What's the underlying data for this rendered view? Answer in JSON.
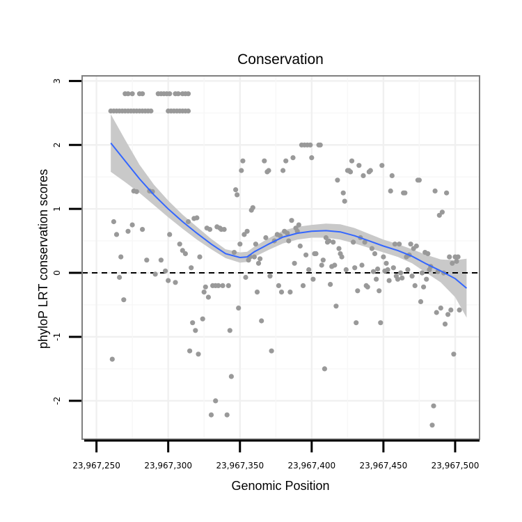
{
  "chart_data": {
    "type": "scatter",
    "title": "Conservation",
    "xlabel": "Genomic Position",
    "ylabel": "phyloP LRT conservation scores",
    "xlim": [
      23967240,
      23967517
    ],
    "ylim": [
      -2.6,
      3.08
    ],
    "x_ticks": [
      23967250,
      23967300,
      23967350,
      23967400,
      23967450,
      23967500
    ],
    "x_tick_labels": [
      "23,967,250",
      "23,967,300",
      "23,967,350",
      "23,967,400",
      "23,967,450",
      "23,967,500"
    ],
    "y_ticks": [
      -2,
      -1,
      0,
      1,
      2,
      3
    ],
    "y_tick_labels": [
      "-2",
      "-1",
      "0",
      "1",
      "2",
      "3"
    ],
    "reference_line": {
      "y": 0,
      "style": "dashed",
      "color": "#000000"
    },
    "grid": true,
    "colors": {
      "points": "#999999",
      "smooth": "#3366ff",
      "ribbon": "#c9c9c9",
      "panel_border": "#7f7f7f",
      "grid": "#f0f0f0"
    },
    "points": [
      [
        23967260,
        2.53
      ],
      [
        23967262,
        2.53
      ],
      [
        23967264,
        2.53
      ],
      [
        23967266,
        2.53
      ],
      [
        23967268,
        2.53
      ],
      [
        23967270,
        2.53
      ],
      [
        23967272,
        2.53
      ],
      [
        23967274,
        2.53
      ],
      [
        23967276,
        2.53
      ],
      [
        23967278,
        2.53
      ],
      [
        23967280,
        2.53
      ],
      [
        23967282,
        2.53
      ],
      [
        23967284,
        2.53
      ],
      [
        23967286,
        2.53
      ],
      [
        23967288,
        2.53
      ],
      [
        23967300,
        2.53
      ],
      [
        23967302,
        2.53
      ],
      [
        23967304,
        2.53
      ],
      [
        23967306,
        2.53
      ],
      [
        23967308,
        2.53
      ],
      [
        23967310,
        2.53
      ],
      [
        23967312,
        2.53
      ],
      [
        23967314,
        2.53
      ],
      [
        23967270,
        2.8
      ],
      [
        23967272,
        2.8
      ],
      [
        23967275,
        2.8
      ],
      [
        23967280,
        2.8
      ],
      [
        23967282,
        2.8
      ],
      [
        23967293,
        2.8
      ],
      [
        23967295,
        2.8
      ],
      [
        23967297,
        2.8
      ],
      [
        23967299,
        2.8
      ],
      [
        23967301,
        2.8
      ],
      [
        23967305,
        2.8
      ],
      [
        23967307,
        2.8
      ],
      [
        23967310,
        2.8
      ],
      [
        23967312,
        2.8
      ],
      [
        23967314,
        2.8
      ],
      [
        23967261,
        -1.35
      ],
      [
        23967262,
        0.8
      ],
      [
        23967264,
        0.6
      ],
      [
        23967266,
        -0.07
      ],
      [
        23967267,
        0.25
      ],
      [
        23967269,
        -0.42
      ],
      [
        23967272,
        0.65
      ],
      [
        23967275,
        0.75
      ],
      [
        23967276,
        1.28
      ],
      [
        23967278,
        1.27
      ],
      [
        23967282,
        0.68
      ],
      [
        23967285,
        0.2
      ],
      [
        23967287,
        1.28
      ],
      [
        23967289,
        1.27
      ],
      [
        23967291,
        -0.02
      ],
      [
        23967295,
        0.2
      ],
      [
        23967298,
        0.03
      ],
      [
        23967300,
        -0.12
      ],
      [
        23967301,
        0.6
      ],
      [
        23967305,
        -0.15
      ],
      [
        23967308,
        0.45
      ],
      [
        23967310,
        0.35
      ],
      [
        23967312,
        0.3
      ],
      [
        23967314,
        0.8
      ],
      [
        23967315,
        -1.22
      ],
      [
        23967316,
        0.08
      ],
      [
        23967317,
        -0.78
      ],
      [
        23967318,
        0.85
      ],
      [
        23967319,
        -0.9
      ],
      [
        23967320,
        0.86
      ],
      [
        23967321,
        -1.27
      ],
      [
        23967322,
        0.25
      ],
      [
        23967324,
        -0.72
      ],
      [
        23967325,
        -0.3
      ],
      [
        23967326,
        -0.22
      ],
      [
        23967327,
        0.7
      ],
      [
        23967328,
        -0.38
      ],
      [
        23967329,
        0.68
      ],
      [
        23967330,
        -2.22
      ],
      [
        23967331,
        -0.2
      ],
      [
        23967333,
        -2.0
      ],
      [
        23967333,
        -0.2
      ],
      [
        23967334,
        0.72
      ],
      [
        23967335,
        -0.2
      ],
      [
        23967336,
        0.7
      ],
      [
        23967337,
        0.68
      ],
      [
        23967338,
        -0.2
      ],
      [
        23967339,
        0.68
      ],
      [
        23967341,
        -2.22
      ],
      [
        23967342,
        -0.2
      ],
      [
        23967343,
        -0.9
      ],
      [
        23967344,
        -1.62
      ],
      [
        23967346,
        0.32
      ],
      [
        23967347,
        1.3
      ],
      [
        23967348,
        1.22
      ],
      [
        23967349,
        -0.55
      ],
      [
        23967350,
        0.45
      ],
      [
        23967351,
        1.6
      ],
      [
        23967352,
        1.75
      ],
      [
        23967353,
        0.6
      ],
      [
        23967354,
        -0.07
      ],
      [
        23967355,
        0.65
      ],
      [
        23967356,
        0.2
      ],
      [
        23967357,
        0.25
      ],
      [
        23967358,
        0.98
      ],
      [
        23967359,
        1.02
      ],
      [
        23967360,
        0.25
      ],
      [
        23967361,
        0.45
      ],
      [
        23967362,
        -0.3
      ],
      [
        23967363,
        0.15
      ],
      [
        23967364,
        0.22
      ],
      [
        23967365,
        -0.75
      ],
      [
        23967367,
        1.75
      ],
      [
        23967368,
        0.55
      ],
      [
        23967369,
        1.58
      ],
      [
        23967370,
        1.6
      ],
      [
        23967371,
        -0.05
      ],
      [
        23967372,
        -1.22
      ],
      [
        23967374,
        0.5
      ],
      [
        23967376,
        0.6
      ],
      [
        23967377,
        -0.2
      ],
      [
        23967378,
        0.58
      ],
      [
        23967379,
        -0.3
      ],
      [
        23967380,
        1.6
      ],
      [
        23967381,
        0.65
      ],
      [
        23967382,
        1.75
      ],
      [
        23967383,
        0.62
      ],
      [
        23967384,
        0.5
      ],
      [
        23967385,
        -0.3
      ],
      [
        23967386,
        0.82
      ],
      [
        23967387,
        1.8
      ],
      [
        23967388,
        0.15
      ],
      [
        23967389,
        0.7
      ],
      [
        23967390,
        0.65
      ],
      [
        23967391,
        0.75
      ],
      [
        23967392,
        0.42
      ],
      [
        23967393,
        2.0
      ],
      [
        23967394,
        -0.2
      ],
      [
        23967395,
        2.0
      ],
      [
        23967396,
        0.28
      ],
      [
        23967397,
        2.0
      ],
      [
        23967398,
        0.05
      ],
      [
        23967399,
        2.0
      ],
      [
        23967400,
        1.8
      ],
      [
        23967401,
        -0.1
      ],
      [
        23967402,
        0.3
      ],
      [
        23967403,
        0.3
      ],
      [
        23967405,
        2.0
      ],
      [
        23967406,
        2.0
      ],
      [
        23967407,
        0.12
      ],
      [
        23967408,
        0.2
      ],
      [
        23967409,
        -1.5
      ],
      [
        23967410,
        0.55
      ],
      [
        23967411,
        0.48
      ],
      [
        23967412,
        0.5
      ],
      [
        23967413,
        -0.18
      ],
      [
        23967414,
        0.1
      ],
      [
        23967415,
        0.48
      ],
      [
        23967416,
        0.12
      ],
      [
        23967417,
        -0.52
      ],
      [
        23967418,
        1.45
      ],
      [
        23967419,
        0.38
      ],
      [
        23967420,
        0.3
      ],
      [
        23967421,
        0.25
      ],
      [
        23967422,
        1.25
      ],
      [
        23967423,
        1.12
      ],
      [
        23967424,
        0.05
      ],
      [
        23967425,
        1.6
      ],
      [
        23967426,
        1.6
      ],
      [
        23967427,
        1.58
      ],
      [
        23967428,
        1.75
      ],
      [
        23967429,
        0.48
      ],
      [
        23967430,
        0.08
      ],
      [
        23967431,
        -0.78
      ],
      [
        23967432,
        -0.28
      ],
      [
        23967433,
        1.68
      ],
      [
        23967434,
        0.55
      ],
      [
        23967435,
        0.12
      ],
      [
        23967436,
        1.52
      ],
      [
        23967437,
        0.48
      ],
      [
        23967438,
        -0.2
      ],
      [
        23967439,
        -0.22
      ],
      [
        23967440,
        1.58
      ],
      [
        23967441,
        1.6
      ],
      [
        23967442,
        0.38
      ],
      [
        23967443,
        0.02
      ],
      [
        23967444,
        0.3
      ],
      [
        23967445,
        -0.1
      ],
      [
        23967446,
        0.06
      ],
      [
        23967447,
        -0.28
      ],
      [
        23967448,
        -0.78
      ],
      [
        23967449,
        1.68
      ],
      [
        23967450,
        0.25
      ],
      [
        23967451,
        0.03
      ],
      [
        23967452,
        0.15
      ],
      [
        23967453,
        0.05
      ],
      [
        23967454,
        -0.12
      ],
      [
        23967455,
        1.28
      ],
      [
        23967456,
        1.52
      ],
      [
        23967457,
        0.08
      ],
      [
        23967458,
        0.45
      ],
      [
        23967459,
        -0.05
      ],
      [
        23967460,
        -0.1
      ],
      [
        23967461,
        0.45
      ],
      [
        23967462,
        0.0
      ],
      [
        23967463,
        -0.08
      ],
      [
        23967464,
        1.25
      ],
      [
        23967465,
        1.25
      ],
      [
        23967466,
        0.25
      ],
      [
        23967467,
        0.05
      ],
      [
        23967468,
        0.28
      ],
      [
        23967469,
        0.45
      ],
      [
        23967470,
        -0.05
      ],
      [
        23967471,
        0.38
      ],
      [
        23967472,
        -0.2
      ],
      [
        23967473,
        0.42
      ],
      [
        23967474,
        1.45
      ],
      [
        23967475,
        1.45
      ],
      [
        23967476,
        -0.45
      ],
      [
        23967477,
        0.0
      ],
      [
        23967478,
        -0.22
      ],
      [
        23967479,
        0.32
      ],
      [
        23967480,
        -0.1
      ],
      [
        23967481,
        0.3
      ],
      [
        23967482,
        0.05
      ],
      [
        23967483,
        0.1
      ],
      [
        23967484,
        -2.38
      ],
      [
        23967485,
        -2.08
      ],
      [
        23967486,
        1.28
      ],
      [
        23967487,
        -0.62
      ],
      [
        23967488,
        0.02
      ],
      [
        23967489,
        0.9
      ],
      [
        23967490,
        -0.55
      ],
      [
        23967491,
        0.95
      ],
      [
        23967492,
        0.0
      ],
      [
        23967493,
        -0.8
      ],
      [
        23967494,
        1.25
      ],
      [
        23967495,
        -0.65
      ],
      [
        23967496,
        0.25
      ],
      [
        23967497,
        -0.58
      ],
      [
        23967498,
        0.15
      ],
      [
        23967499,
        -1.27
      ],
      [
        23967500,
        0.25
      ],
      [
        23967501,
        0.18
      ],
      [
        23967502,
        0.25
      ],
      [
        23967503,
        -0.58
      ]
    ],
    "smooth": {
      "x": [
        23967260,
        23967270,
        23967280,
        23967290,
        23967300,
        23967310,
        23967320,
        23967330,
        23967340,
        23967350,
        23967355,
        23967360,
        23967370,
        23967380,
        23967390,
        23967400,
        23967410,
        23967420,
        23967430,
        23967440,
        23967450,
        23967460,
        23967470,
        23967480,
        23967490,
        23967500,
        23967508
      ],
      "y": [
        2.03,
        1.75,
        1.47,
        1.22,
        1.0,
        0.8,
        0.62,
        0.45,
        0.3,
        0.24,
        0.25,
        0.33,
        0.45,
        0.56,
        0.62,
        0.65,
        0.66,
        0.64,
        0.58,
        0.5,
        0.42,
        0.35,
        0.26,
        0.14,
        0.03,
        -0.09,
        -0.24
      ],
      "lower": [
        1.58,
        1.42,
        1.25,
        1.06,
        0.87,
        0.69,
        0.52,
        0.37,
        0.23,
        0.16,
        0.17,
        0.25,
        0.36,
        0.46,
        0.52,
        0.55,
        0.55,
        0.52,
        0.46,
        0.39,
        0.32,
        0.25,
        0.15,
        0.0,
        -0.15,
        -0.38,
        -0.7
      ],
      "upper": [
        2.48,
        2.08,
        1.69,
        1.38,
        1.13,
        0.91,
        0.72,
        0.53,
        0.37,
        0.32,
        0.33,
        0.41,
        0.54,
        0.66,
        0.72,
        0.75,
        0.77,
        0.76,
        0.7,
        0.61,
        0.52,
        0.45,
        0.37,
        0.28,
        0.21,
        0.2,
        0.22
      ]
    }
  }
}
